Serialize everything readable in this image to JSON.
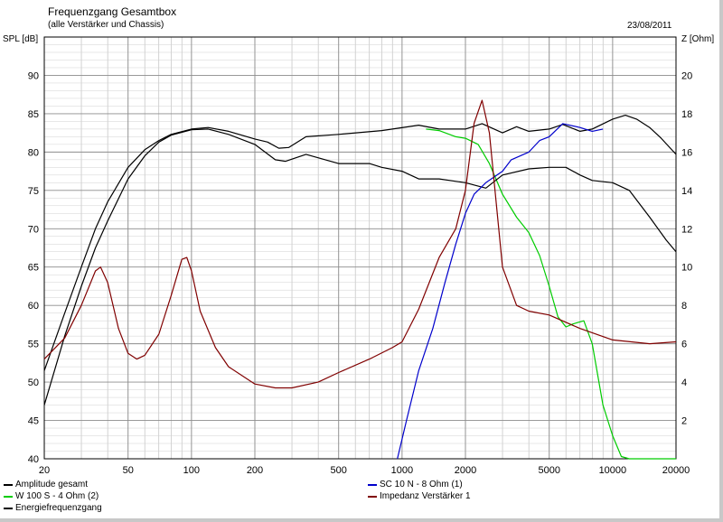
{
  "header": {
    "title": "Frequenzgang Gesamtbox",
    "subtitle": "(alle Verstärker und Chassis)",
    "date": "23/08/2011"
  },
  "chart_data": {
    "type": "line",
    "title": "Frequenzgang Gesamtbox",
    "subtitle": "(alle Verstärker und Chassis)",
    "ylabel": "SPL [dB]",
    "y2label": "Z [Ohm]",
    "xscale": "log",
    "xlim": [
      20,
      20000
    ],
    "ylim": [
      40,
      95
    ],
    "y2lim": [
      0,
      22
    ],
    "x_ticks": [
      20,
      50,
      100,
      200,
      500,
      1000,
      2000,
      5000,
      10000,
      20000
    ],
    "x_tick_labels": [
      "20",
      "50",
      "100",
      "200",
      "500",
      "1000",
      "2000",
      "5000",
      "10000",
      "20000"
    ],
    "y_ticks": [
      40,
      45,
      50,
      55,
      60,
      65,
      70,
      75,
      80,
      85,
      90
    ],
    "y_tick_labels": [
      "40",
      "45",
      "50",
      "55",
      "60",
      "65",
      "70",
      "75",
      "80",
      "85",
      "90"
    ],
    "y2_ticks": [
      2,
      4,
      6,
      8,
      10,
      12,
      14,
      16,
      18,
      20
    ],
    "y2_tick_labels": [
      "2",
      "4",
      "6",
      "8",
      "10",
      "12",
      "14",
      "16",
      "18",
      "20"
    ],
    "grid": true,
    "legend_position": "bottom",
    "series": [
      {
        "name": "Amplitude gesamt",
        "color": "#000000",
        "axis": "left",
        "points": [
          [
            20,
            51.5
          ],
          [
            25,
            59
          ],
          [
            30,
            65
          ],
          [
            35,
            70
          ],
          [
            40,
            73.5
          ],
          [
            50,
            78
          ],
          [
            60,
            80.3
          ],
          [
            70,
            81.5
          ],
          [
            80,
            82.3
          ],
          [
            100,
            83
          ],
          [
            120,
            83.2
          ],
          [
            150,
            82.7
          ],
          [
            200,
            81.7
          ],
          [
            230,
            81.3
          ],
          [
            260,
            80.5
          ],
          [
            290,
            80.6
          ],
          [
            350,
            82
          ],
          [
            500,
            82.3
          ],
          [
            800,
            82.8
          ],
          [
            1200,
            83.5
          ],
          [
            1500,
            83
          ],
          [
            2000,
            83
          ],
          [
            2400,
            83.7
          ],
          [
            3000,
            82.5
          ],
          [
            3500,
            83.3
          ],
          [
            4000,
            82.7
          ],
          [
            5000,
            83
          ],
          [
            5800,
            83.6
          ],
          [
            7000,
            82.7
          ],
          [
            8000,
            83
          ],
          [
            10000,
            84.3
          ],
          [
            11500,
            84.8
          ],
          [
            13000,
            84.3
          ],
          [
            15000,
            83.2
          ],
          [
            17000,
            81.8
          ],
          [
            20000,
            79.7
          ]
        ]
      },
      {
        "name": "W 100 S - 4 Ohm (2)",
        "color": "#00cc00",
        "axis": "left",
        "points": [
          [
            1300,
            83
          ],
          [
            1500,
            82.8
          ],
          [
            1800,
            82
          ],
          [
            2000,
            81.8
          ],
          [
            2300,
            81
          ],
          [
            2600,
            78.5
          ],
          [
            3000,
            74.5
          ],
          [
            3500,
            71.5
          ],
          [
            4000,
            69.5
          ],
          [
            4500,
            66.5
          ],
          [
            5000,
            62.5
          ],
          [
            5500,
            58.5
          ],
          [
            6000,
            57.2
          ],
          [
            6500,
            57.6
          ],
          [
            7300,
            58
          ],
          [
            8000,
            55
          ],
          [
            9000,
            47
          ],
          [
            10000,
            43
          ],
          [
            11000,
            40.3
          ],
          [
            12000,
            40
          ],
          [
            20000,
            40
          ]
        ]
      },
      {
        "name": "Energiefrequenzgang",
        "color": "#000000",
        "axis": "left",
        "points": [
          [
            20,
            47
          ],
          [
            25,
            56
          ],
          [
            30,
            62.5
          ],
          [
            35,
            67.5
          ],
          [
            40,
            71
          ],
          [
            50,
            76.5
          ],
          [
            60,
            79.5
          ],
          [
            70,
            81.3
          ],
          [
            80,
            82.2
          ],
          [
            100,
            82.9
          ],
          [
            120,
            83
          ],
          [
            150,
            82.3
          ],
          [
            200,
            81
          ],
          [
            250,
            79
          ],
          [
            280,
            78.8
          ],
          [
            350,
            79.7
          ],
          [
            500,
            78.5
          ],
          [
            700,
            78.5
          ],
          [
            800,
            78
          ],
          [
            1000,
            77.5
          ],
          [
            1200,
            76.5
          ],
          [
            1500,
            76.5
          ],
          [
            2000,
            76
          ],
          [
            2500,
            75.3
          ],
          [
            3000,
            77
          ],
          [
            4000,
            77.8
          ],
          [
            5000,
            78
          ],
          [
            6000,
            78
          ],
          [
            7000,
            77
          ],
          [
            8000,
            76.3
          ],
          [
            10000,
            76
          ],
          [
            12000,
            75
          ],
          [
            15000,
            71.5
          ],
          [
            18000,
            68.5
          ],
          [
            20000,
            67
          ]
        ]
      },
      {
        "name": "SC 10 N - 8 Ohm (1)",
        "color": "#0000cc",
        "axis": "left",
        "points": [
          [
            950,
            40
          ],
          [
            1050,
            45
          ],
          [
            1200,
            51.5
          ],
          [
            1400,
            57
          ],
          [
            1600,
            63
          ],
          [
            1800,
            68
          ],
          [
            2000,
            72
          ],
          [
            2200,
            74.5
          ],
          [
            2500,
            76
          ],
          [
            3000,
            77.5
          ],
          [
            3300,
            79
          ],
          [
            4000,
            80
          ],
          [
            4500,
            81.5
          ],
          [
            5000,
            82
          ],
          [
            5800,
            83.7
          ],
          [
            7000,
            83.2
          ],
          [
            8000,
            82.7
          ],
          [
            9000,
            83
          ]
        ]
      },
      {
        "name": "Impedanz Verstärker 1",
        "color": "#800000",
        "axis": "right",
        "points": [
          [
            20,
            5.2
          ],
          [
            25,
            6.3
          ],
          [
            30,
            8
          ],
          [
            35,
            9.8
          ],
          [
            37,
            10
          ],
          [
            40,
            9.2
          ],
          [
            45,
            6.8
          ],
          [
            50,
            5.5
          ],
          [
            55,
            5.2
          ],
          [
            60,
            5.4
          ],
          [
            70,
            6.5
          ],
          [
            80,
            8.5
          ],
          [
            90,
            10.4
          ],
          [
            95,
            10.5
          ],
          [
            100,
            9.8
          ],
          [
            110,
            7.7
          ],
          [
            130,
            5.8
          ],
          [
            150,
            4.8
          ],
          [
            200,
            3.9
          ],
          [
            250,
            3.7
          ],
          [
            300,
            3.7
          ],
          [
            400,
            4
          ],
          [
            500,
            4.5
          ],
          [
            700,
            5.2
          ],
          [
            900,
            5.8
          ],
          [
            1000,
            6.1
          ],
          [
            1200,
            7.8
          ],
          [
            1500,
            10.5
          ],
          [
            1800,
            12
          ],
          [
            2000,
            14
          ],
          [
            2200,
            17.5
          ],
          [
            2400,
            18.7
          ],
          [
            2600,
            17
          ],
          [
            3000,
            10
          ],
          [
            3500,
            8
          ],
          [
            4000,
            7.7
          ],
          [
            5000,
            7.5
          ],
          [
            7000,
            6.8
          ],
          [
            10000,
            6.2
          ],
          [
            15000,
            6
          ],
          [
            20000,
            6.1
          ]
        ]
      }
    ]
  }
}
